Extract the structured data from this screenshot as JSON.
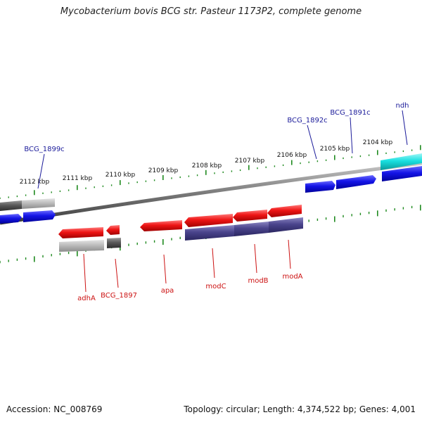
{
  "title": "Mycobacterium bovis BCG str. Pasteur 1173P2, complete genome",
  "footer": {
    "accession": "Accession: NC_008769",
    "summary": "Topology: circular; Length: 4,374,522 bp; Genes: 4,001"
  },
  "colors": {
    "tick": "#1f8a1f",
    "backbone": "#8a8a8a",
    "forward_label": "#1b1b9a",
    "reverse_label": "#cc1111",
    "blue": "#1414e6",
    "cyan": "#19e0e0",
    "red": "#ee1515",
    "purple": "#4a448c",
    "light_gray": "#bcbcbc",
    "dark_gray": "#5a5a5a"
  },
  "scale_labels": [
    "2112 kbp",
    "2111 kbp",
    "2110 kbp",
    "2109 kbp",
    "2108 kbp",
    "2107 kbp",
    "2106 kbp",
    "2105 kbp",
    "2104 kbp"
  ],
  "forward_gene_labels": [
    "BCG_1899c",
    "BCG_1892c",
    "BCG_1891c",
    "ndh"
  ],
  "reverse_gene_labels": [
    "adhA",
    "BCG_1897",
    "apa",
    "modC",
    "modB",
    "modA"
  ]
}
